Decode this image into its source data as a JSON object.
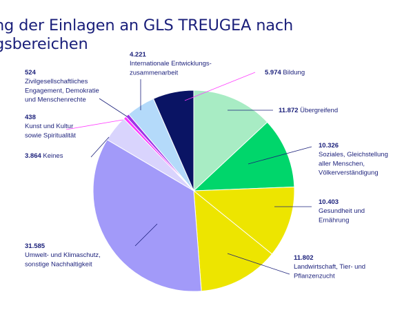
{
  "title_lines": [
    "ng der Einlagen an GLS TREUGEA nach",
    "gsbereichen"
  ],
  "chart_data": {
    "type": "pie",
    "title": "ng der Einlagen an GLS TREUGEA nach gsbereichen",
    "slices": [
      {
        "value": 11872,
        "display": "11.872",
        "label": [
          "Übergreifend"
        ],
        "color": "#a8ecc4"
      },
      {
        "value": 10326,
        "display": "10.326",
        "label": [
          "Soziales, Gleichstellung",
          "aller Menschen,",
          "Völkerverständigung"
        ],
        "color": "#00d66b"
      },
      {
        "value": 10403,
        "display": "10.403",
        "label": [
          "Gesundheit und",
          "Ernährung"
        ],
        "color": "#ffffff"
      },
      {
        "value": 11802,
        "display": "11.802",
        "label": [
          "Landwirtschaft, Tier- und",
          "Pflanzenzucht"
        ],
        "color": "#ede500"
      },
      {
        "value": 31585,
        "display": "31.585",
        "label": [
          "Umwelt- und Klimaschutz,",
          "sonstige Nachhaltigkeit"
        ],
        "color": "#a29af9"
      },
      {
        "value": 3864,
        "display": "3.864",
        "label": [
          "Keines"
        ],
        "color": "#d9d4fd"
      },
      {
        "value": 438,
        "display": "438",
        "label": [
          "Kunst und Kultur",
          "sowie Spiritualität"
        ],
        "color": "#ff3cff"
      },
      {
        "value": 524,
        "display": "524",
        "label": [
          "Zivilgesellschaftliches",
          "Engagement, Demokratie",
          "und Menschenrechte"
        ],
        "color": "#9c34e6"
      },
      {
        "value": 4221,
        "display": "4.221",
        "label": [
          "Internationale Entwicklungs-",
          "zusammenarbeit"
        ],
        "color": "#b4dafa"
      },
      {
        "value": 5974,
        "display": "5.974",
        "label": [
          "Bildung"
        ],
        "color": "#0a1464"
      }
    ]
  }
}
